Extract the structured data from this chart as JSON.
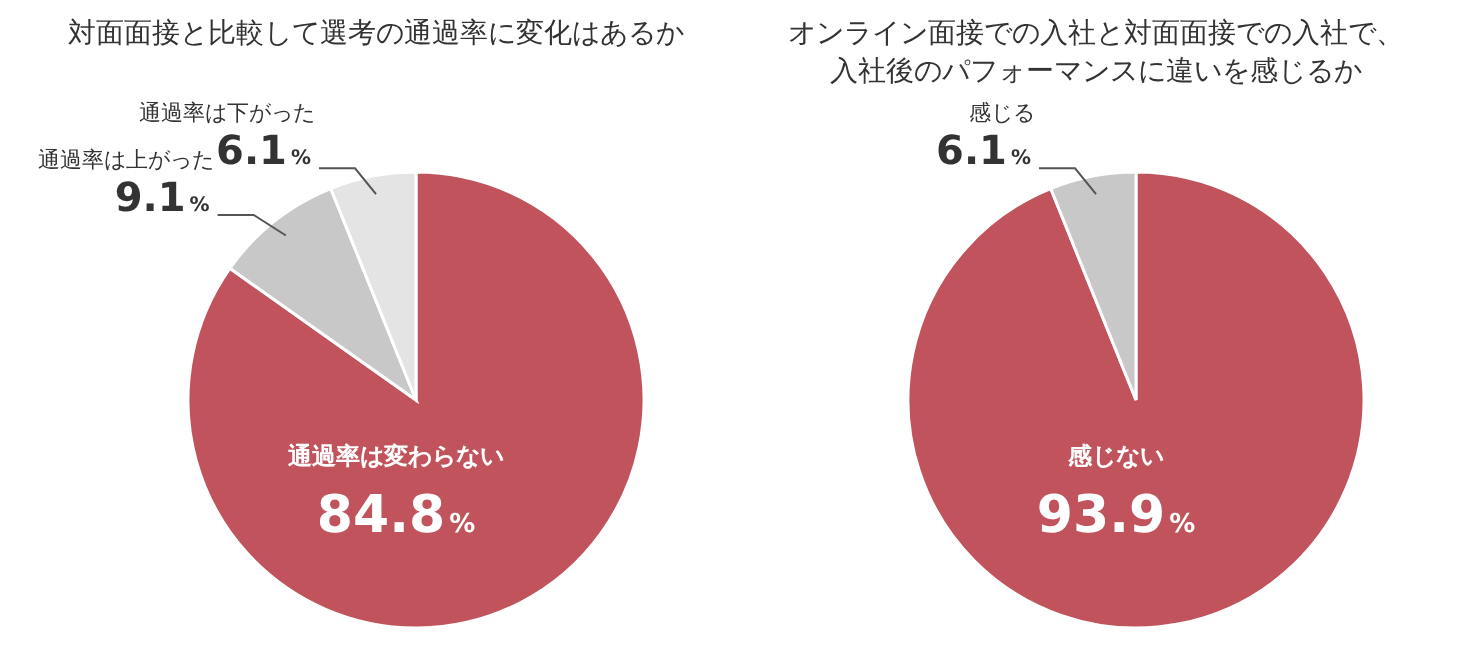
{
  "chart_data": [
    {
      "type": "pie",
      "title": "対面面接と比較して選考の通過率に変化はあるか",
      "categories": [
        "通過率は変わらない",
        "通過率は上がった",
        "通過率は下がった"
      ],
      "values": [
        84.8,
        9.1,
        6.1
      ],
      "colors": [
        "#c0535c",
        "#c8c8c8",
        "#e4e4e4"
      ],
      "value_labels": [
        "84.8%",
        "9.1%",
        "6.1%"
      ]
    },
    {
      "type": "pie",
      "title": "オンライン面接での入社と対面面接での入社で、入社後のパフォーマンスに違いを感じるか",
      "categories": [
        "感じない",
        "感じる"
      ],
      "values": [
        93.9,
        6.1
      ],
      "colors": [
        "#c0535c",
        "#c8c8c8"
      ],
      "value_labels": [
        "93.9%",
        "6.1%"
      ]
    }
  ]
}
